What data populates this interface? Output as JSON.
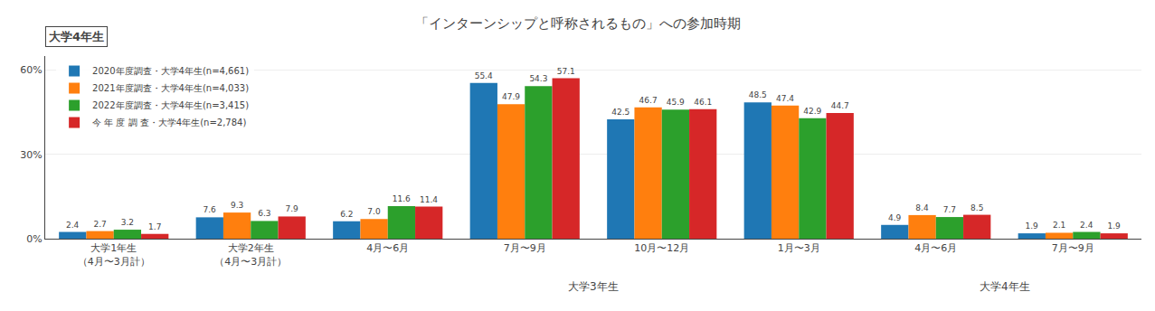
{
  "chart_data": {
    "type": "bar",
    "title": "「インターンシップと呼称されるもの」への参加時期",
    "subtitle": "大学4年生",
    "categories": [
      "大学1年生\n（4月〜3月計）",
      "大学2年生\n（4月〜3月計）",
      "4月〜6月",
      "7月〜9月",
      "10月〜12月",
      "1月〜3月",
      "4月〜6月",
      "7月〜9月"
    ],
    "parents": [
      null,
      null,
      "大学3年生",
      "大学3年生",
      "大学3年生",
      "大学3年生",
      "大学4年生",
      "大学4年生"
    ],
    "series": [
      {
        "name": "2020年度調査・大学4年生(n=4,661)",
        "values": [
          2.4,
          7.6,
          6.2,
          55.4,
          42.5,
          48.5,
          4.9,
          1.9
        ]
      },
      {
        "name": "2021年度調査・大学4年生(n=4,033)",
        "values": [
          2.7,
          9.3,
          7.0,
          47.9,
          46.7,
          47.4,
          8.4,
          2.1
        ],
        "value_labels": [
          "2.7",
          "9.3",
          "7.0",
          "47.9",
          "46.7",
          "47.4",
          "8.4",
          "2.1"
        ]
      },
      {
        "name": "2022年度調査・大学4年生(n=3,415)",
        "values": [
          3.2,
          6.3,
          11.6,
          54.3,
          45.9,
          42.9,
          7.7,
          2.4
        ]
      },
      {
        "name": "今 年 度 調 査・大学4年生(n=2,784)",
        "values": [
          1.7,
          7.9,
          11.4,
          57.1,
          46.1,
          44.7,
          8.5,
          1.9
        ]
      }
    ],
    "ylim": [
      0,
      65
    ],
    "yticks": [
      {
        "value": 0,
        "label": "0%"
      },
      {
        "value": 30,
        "label": "30%"
      },
      {
        "value": 60,
        "label": "60%"
      }
    ],
    "grid": true,
    "legend": "upper left",
    "data_labels": true
  }
}
